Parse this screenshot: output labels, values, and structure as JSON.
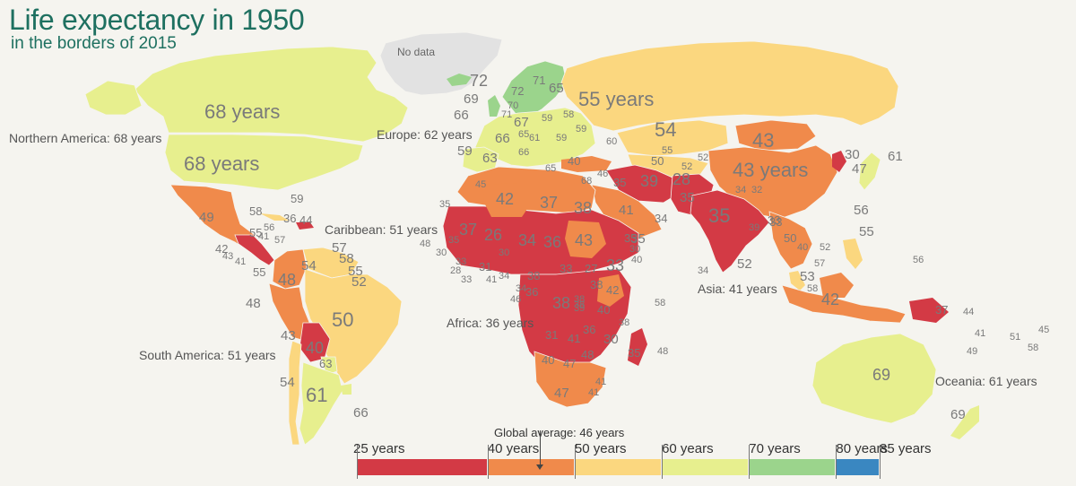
{
  "title": "Life expectancy in 1950",
  "subtitle": "in the borders of 2015",
  "no_data_label": "No data",
  "colors": {
    "red": "#d33a45",
    "orange": "#f08a4b",
    "yellow": "#fbd77f",
    "lightgreen": "#e7ef8e",
    "green": "#9bd48c",
    "blue": "#3a87c1",
    "nodata": "#e2e2e2",
    "background": "#f5f4ef",
    "title": "#1e7060"
  },
  "regions": {
    "northern_america": "Northern America: 68 years",
    "europe": "Europe: 62 years",
    "caribbean": "Caribbean: 51 years",
    "south_america": "South America: 51 years",
    "africa": "Africa: 36 years",
    "asia": "Asia: 41 years",
    "oceania": "Oceania: 61 years"
  },
  "big_labels": {
    "canada": "68 years",
    "usa": "68 years",
    "russia": "55 years",
    "kazakhstan": "54",
    "mongolia": "43",
    "china": "43 years",
    "india": "35",
    "brazil": "50",
    "australia": "69"
  },
  "country_values": [
    {
      "id": "greenland-na",
      "text": "No data"
    },
    {
      "id": "iceland",
      "text": "72"
    },
    {
      "id": "ireland",
      "text": "66"
    },
    {
      "id": "uk",
      "text": "69"
    },
    {
      "id": "norway",
      "text": "72"
    },
    {
      "id": "sweden",
      "text": "71"
    },
    {
      "id": "finland",
      "text": "65"
    },
    {
      "id": "denmark",
      "text": "70"
    },
    {
      "id": "netherlands",
      "text": "71"
    },
    {
      "id": "germany",
      "text": "67"
    },
    {
      "id": "poland",
      "text": "59"
    },
    {
      "id": "belarus",
      "text": "58"
    },
    {
      "id": "ukraine",
      "text": "59"
    },
    {
      "id": "france",
      "text": "66"
    },
    {
      "id": "austria",
      "text": "65"
    },
    {
      "id": "hungary",
      "text": "61"
    },
    {
      "id": "romania",
      "text": "59"
    },
    {
      "id": "spain",
      "text": "63"
    },
    {
      "id": "portugal",
      "text": "59"
    },
    {
      "id": "italy",
      "text": "66"
    },
    {
      "id": "greece",
      "text": "65"
    },
    {
      "id": "turkey",
      "text": "40"
    },
    {
      "id": "caucasus",
      "text": "60"
    },
    {
      "id": "uzbekistan",
      "text": "55"
    },
    {
      "id": "turkmenistan",
      "text": "50"
    },
    {
      "id": "kyrgyz",
      "text": "52"
    },
    {
      "id": "tajik",
      "text": "52"
    },
    {
      "id": "iran",
      "text": "35"
    },
    {
      "id": "afghanistan",
      "text": "28"
    },
    {
      "id": "pakistan",
      "text": "35"
    },
    {
      "id": "iraq-syria",
      "text": "39"
    },
    {
      "id": "israel",
      "text": "68"
    },
    {
      "id": "lebanon",
      "text": "46"
    },
    {
      "id": "saudi",
      "text": "41"
    },
    {
      "id": "yemen",
      "text": "34"
    },
    {
      "id": "oman",
      "text": "35"
    },
    {
      "id": "nepal",
      "text": "34"
    },
    {
      "id": "bhutan",
      "text": "32"
    },
    {
      "id": "bangladesh",
      "text": "33"
    },
    {
      "id": "myanmar",
      "text": "33"
    },
    {
      "id": "srilanka",
      "text": "52"
    },
    {
      "id": "maldives",
      "text": "34"
    },
    {
      "id": "lao",
      "text": "39"
    },
    {
      "id": "thailand",
      "text": "50"
    },
    {
      "id": "cambodia",
      "text": "40"
    },
    {
      "id": "vietnam",
      "text": "52"
    },
    {
      "id": "malaysia",
      "text": "53"
    },
    {
      "id": "singapore",
      "text": "57"
    },
    {
      "id": "brunei",
      "text": "58"
    },
    {
      "id": "indonesia",
      "text": "42"
    },
    {
      "id": "philippines",
      "text": "55"
    },
    {
      "id": "taiwan",
      "text": "56"
    },
    {
      "id": "korea-north",
      "text": "30"
    },
    {
      "id": "korea-south",
      "text": "47"
    },
    {
      "id": "japan",
      "text": "61"
    },
    {
      "id": "png",
      "text": "37"
    },
    {
      "id": "solomon",
      "text": "44"
    },
    {
      "id": "vanuatu",
      "text": "41"
    },
    {
      "id": "fiji",
      "text": "51"
    },
    {
      "id": "samoa",
      "text": "45"
    },
    {
      "id": "tonga",
      "text": "58"
    },
    {
      "id": "new-caledonia",
      "text": "49"
    },
    {
      "id": "micronesia",
      "text": "56"
    },
    {
      "id": "new-zealand",
      "text": "69"
    },
    {
      "id": "morocco",
      "text": "45"
    },
    {
      "id": "algeria",
      "text": "42"
    },
    {
      "id": "libya",
      "text": "37"
    },
    {
      "id": "egypt",
      "text": "38"
    },
    {
      "id": "western-sahara",
      "text": "35"
    },
    {
      "id": "mauritania",
      "text": "37"
    },
    {
      "id": "mali",
      "text": "26"
    },
    {
      "id": "niger",
      "text": "34"
    },
    {
      "id": "chad",
      "text": "36"
    },
    {
      "id": "sudan",
      "text": "43"
    },
    {
      "id": "eritrea",
      "text": "35"
    },
    {
      "id": "ethiopia",
      "text": "33"
    },
    {
      "id": "djibouti",
      "text": "30"
    },
    {
      "id": "somalia",
      "text": "40"
    },
    {
      "id": "cape-verde",
      "text": "48"
    },
    {
      "id": "senegal",
      "text": "35"
    },
    {
      "id": "gambia",
      "text": "30"
    },
    {
      "id": "guinea",
      "text": "33"
    },
    {
      "id": "sierra-leone",
      "text": "28"
    },
    {
      "id": "liberia",
      "text": "33"
    },
    {
      "id": "burkina",
      "text": "30"
    },
    {
      "id": "ghana",
      "text": "41"
    },
    {
      "id": "togo",
      "text": "34"
    },
    {
      "id": "nigeria",
      "text": "31"
    },
    {
      "id": "cameroon",
      "text": "38"
    },
    {
      "id": "car",
      "text": "33"
    },
    {
      "id": "south-sudan",
      "text": "27"
    },
    {
      "id": "eq-guinea",
      "text": "34"
    },
    {
      "id": "gabon",
      "text": "36"
    },
    {
      "id": "sao-tome",
      "text": "46"
    },
    {
      "id": "congo",
      "text": "38"
    },
    {
      "id": "drc",
      "text": "38"
    },
    {
      "id": "uganda",
      "text": "39"
    },
    {
      "id": "kenya",
      "text": "42"
    },
    {
      "id": "rwanda",
      "text": "38"
    },
    {
      "id": "burundi",
      "text": "38"
    },
    {
      "id": "tanzania",
      "text": "40"
    },
    {
      "id": "angola",
      "text": "31"
    },
    {
      "id": "zambia",
      "text": "41"
    },
    {
      "id": "malawi",
      "text": "36"
    },
    {
      "id": "mozambique",
      "text": "30"
    },
    {
      "id": "madagascar",
      "text": "35"
    },
    {
      "id": "mauritius",
      "text": "48"
    },
    {
      "id": "seychelles",
      "text": "58"
    },
    {
      "id": "comoros",
      "text": "38"
    },
    {
      "id": "namibia",
      "text": "40"
    },
    {
      "id": "botswana",
      "text": "47"
    },
    {
      "id": "zimbabwe",
      "text": "48"
    },
    {
      "id": "south-africa",
      "text": "47"
    },
    {
      "id": "swaziland",
      "text": "41"
    },
    {
      "id": "lesotho",
      "text": "41"
    },
    {
      "id": "mexico",
      "text": "49"
    },
    {
      "id": "bahamas",
      "text": "58"
    },
    {
      "id": "cuba",
      "text": "59"
    },
    {
      "id": "haiti",
      "text": "36"
    },
    {
      "id": "dominican",
      "text": "44"
    },
    {
      "id": "jamaica",
      "text": "57"
    },
    {
      "id": "belize",
      "text": "55"
    },
    {
      "id": "guatemala",
      "text": "42"
    },
    {
      "id": "honduras",
      "text": "41"
    },
    {
      "id": "salvador",
      "text": "43"
    },
    {
      "id": "nicaragua",
      "text": "56"
    },
    {
      "id": "costa-rica",
      "text": "41"
    },
    {
      "id": "panama",
      "text": "55"
    },
    {
      "id": "trinidad",
      "text": "57"
    },
    {
      "id": "venezuela",
      "text": "54"
    },
    {
      "id": "guyana",
      "text": "58"
    },
    {
      "id": "suriname",
      "text": "55"
    },
    {
      "id": "french-guiana",
      "text": "52"
    },
    {
      "id": "colombia",
      "text": "48"
    },
    {
      "id": "ecuador",
      "text": "48"
    },
    {
      "id": "peru",
      "text": "43"
    },
    {
      "id": "bolivia",
      "text": "40"
    },
    {
      "id": "paraguay",
      "text": "63"
    },
    {
      "id": "chile",
      "text": "54"
    },
    {
      "id": "argentina",
      "text": "61"
    },
    {
      "id": "uruguay",
      "text": "66"
    },
    {
      "id": "brazil-small",
      "text": "50"
    }
  ],
  "legend": {
    "global_average": "Global average: 46 years",
    "ticks": [
      "25 years",
      "40 years",
      "50 years",
      "60 years",
      "70 years",
      "80 years",
      "85 years"
    ],
    "bins": [
      {
        "from": 25,
        "to": 40,
        "color": "#d33a45"
      },
      {
        "from": 40,
        "to": 50,
        "color": "#f08a4b"
      },
      {
        "from": 50,
        "to": 60,
        "color": "#fbd77f"
      },
      {
        "from": 60,
        "to": 70,
        "color": "#e7ef8e"
      },
      {
        "from": 70,
        "to": 80,
        "color": "#9bd48c"
      },
      {
        "from": 80,
        "to": 85,
        "color": "#3a87c1"
      }
    ],
    "global_average_value": 46
  }
}
